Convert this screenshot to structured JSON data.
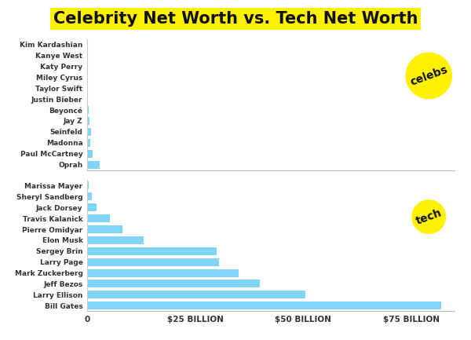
{
  "title": "Celebrity Net Worth vs. Tech Net Worth",
  "chart_data": [
    {
      "type": "bar",
      "title": "celebs",
      "orientation": "horizontal",
      "color": "#7fd4f8",
      "tick_labels": "y",
      "categories": [
        "Kim Kardashian",
        "Kanye West",
        "Katy Perry",
        "Miley Cyrus",
        "Taylor Swift",
        "Justin Bieber",
        "Beyoncé",
        "Jay Z",
        "Seinfeld",
        "Madonna",
        "Paul McCartney",
        "Oprah"
      ],
      "values": [
        0.085,
        0.13,
        0.125,
        0.15,
        0.24,
        0.2,
        0.45,
        0.56,
        0.82,
        0.8,
        1.2,
        2.9
      ],
      "xlim": [
        0,
        85
      ]
    },
    {
      "type": "bar",
      "title": "tech",
      "orientation": "horizontal",
      "color": "#7fd4f8",
      "categories": [
        "Marissa Mayer",
        "Sheryl Sandberg",
        "Jack Dorsey",
        "Travis Kalanick",
        "Pierre Omidyar",
        "Elon Musk",
        "Sergey Brin",
        "Larry Page",
        "Mark Zuckerberg",
        "Jeff Bezos",
        "Larry Ellison",
        "Bill Gates"
      ],
      "values": [
        0.3,
        1.0,
        2.2,
        5.3,
        8.2,
        13,
        30,
        30.5,
        35,
        40,
        50.5,
        82
      ],
      "xlim": [
        0,
        85
      ],
      "xticks": [
        0,
        {
          "value": 25,
          "label": "$25 BILLION"
        },
        {
          "value": 50,
          "label": "$50 BILLION"
        },
        {
          "value": 75,
          "label": "$75 BILLION"
        }
      ]
    }
  ]
}
